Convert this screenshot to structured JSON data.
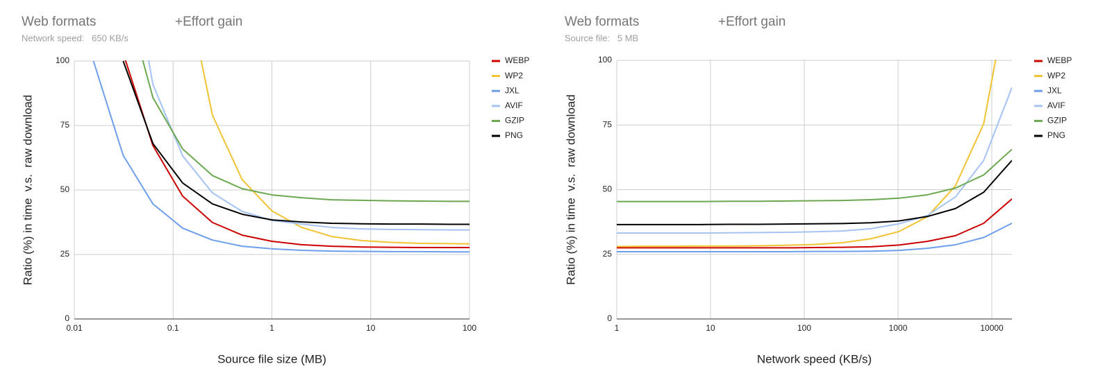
{
  "chart_data": [
    {
      "type": "line",
      "title": "Web formats",
      "annotation": "+Effort gain",
      "subtitle": "Network speed:   650 KB/s",
      "x_label": "Source file size (MB)",
      "y_label": "Ratio (%) in time  v.s.  raw download",
      "xscale": "log",
      "xlim": [
        0.01,
        100
      ],
      "xticks": [
        0.01,
        0.1,
        1,
        10,
        100
      ],
      "ylim": [
        0,
        100
      ],
      "yticks": [
        0,
        25,
        50,
        75,
        100
      ],
      "grid": true,
      "legend": "right",
      "x": [
        0.015625,
        0.03125,
        0.0625,
        0.125,
        0.25,
        0.5,
        1,
        2,
        4,
        8,
        16,
        32,
        64,
        128
      ],
      "series": [
        {
          "name": "WEBP",
          "color": "#cc0000",
          "values": [
            null,
            103,
            67.2,
            47.6,
            37.4,
            32.5,
            30.1,
            28.8,
            28.2,
            27.9,
            27.8,
            27.7,
            27.7,
            27.7
          ]
        },
        {
          "name": "WP2",
          "color": "#f1c232",
          "values": [
            null,
            null,
            null,
            135,
            79.0,
            54.0,
            41.9,
            35.5,
            32.0,
            30.4,
            29.7,
            29.3,
            29.2,
            29.1
          ]
        },
        {
          "name": "JXL",
          "color": "#6d9eeb",
          "values": [
            100,
            63.4,
            44.6,
            35.2,
            30.6,
            28.2,
            27.2,
            26.6,
            26.3,
            26.2,
            26.1,
            26.1,
            26.0,
            26.0
          ]
        },
        {
          "name": "AVIF",
          "color": "#a4c2f4",
          "values": [
            null,
            155,
            90.9,
            63.2,
            48.9,
            41.7,
            38.2,
            36.8,
            35.5,
            34.9,
            34.7,
            34.6,
            34.5,
            34.5
          ]
        },
        {
          "name": "GZIP",
          "color": "#6aa84f",
          "values": [
            null,
            128,
            85.8,
            65.9,
            55.6,
            50.5,
            48.1,
            47.0,
            46.2,
            46.0,
            45.8,
            45.7,
            45.6,
            45.6
          ]
        },
        {
          "name": "PNG",
          "color": "#000000",
          "values": [
            null,
            100,
            68.0,
            52.7,
            44.6,
            40.6,
            38.4,
            37.6,
            37.1,
            36.9,
            36.8,
            36.8,
            36.7,
            36.7
          ]
        }
      ]
    },
    {
      "type": "line",
      "title": "Web formats",
      "annotation": "+Effort gain",
      "subtitle": "Source file:   5 MB",
      "x_label": "Network speed (KB/s)",
      "y_label": "Ratio (%) in time  v.s.  raw download",
      "xscale": "log",
      "xlim": [
        1,
        16384
      ],
      "xticks": [
        1,
        10,
        100,
        1000,
        10000
      ],
      "ylim": [
        0,
        100
      ],
      "yticks": [
        0,
        25,
        50,
        75,
        100
      ],
      "grid": true,
      "legend": "right",
      "x": [
        1,
        2,
        4,
        8,
        16,
        32,
        64,
        128,
        256,
        512,
        1024,
        2048,
        4096,
        8192,
        16384
      ],
      "series": [
        {
          "name": "WEBP",
          "color": "#cc0000",
          "values": [
            27.5,
            27.5,
            27.5,
            27.5,
            27.5,
            27.5,
            27.5,
            27.6,
            27.7,
            27.9,
            28.6,
            30.0,
            32.2,
            37.0,
            46.4
          ]
        },
        {
          "name": "WP2",
          "color": "#f1c232",
          "values": [
            28.0,
            28.1,
            28.1,
            28.2,
            28.2,
            28.3,
            28.5,
            28.8,
            29.5,
            31.0,
            33.8,
            39.5,
            51.5,
            75.5,
            134
          ]
        },
        {
          "name": "JXL",
          "color": "#6d9eeb",
          "values": [
            26.0,
            26.0,
            26.0,
            26.0,
            26.0,
            26.0,
            26.0,
            26.1,
            26.1,
            26.2,
            26.5,
            27.3,
            28.7,
            31.5,
            37.0
          ]
        },
        {
          "name": "AVIF",
          "color": "#a4c2f4",
          "values": [
            33.2,
            33.2,
            33.2,
            33.2,
            33.3,
            33.4,
            33.5,
            33.7,
            34.0,
            34.9,
            36.8,
            40.0,
            47.2,
            61.3,
            89.5
          ]
        },
        {
          "name": "GZIP",
          "color": "#6aa84f",
          "values": [
            45.4,
            45.4,
            45.4,
            45.4,
            45.5,
            45.5,
            45.6,
            45.7,
            45.8,
            46.1,
            46.7,
            48.0,
            50.6,
            55.7,
            65.6
          ]
        },
        {
          "name": "PNG",
          "color": "#000000",
          "values": [
            36.5,
            36.5,
            36.5,
            36.5,
            36.6,
            36.6,
            36.7,
            36.8,
            36.9,
            37.2,
            37.9,
            39.6,
            42.7,
            49.0,
            61.3
          ]
        }
      ]
    }
  ]
}
